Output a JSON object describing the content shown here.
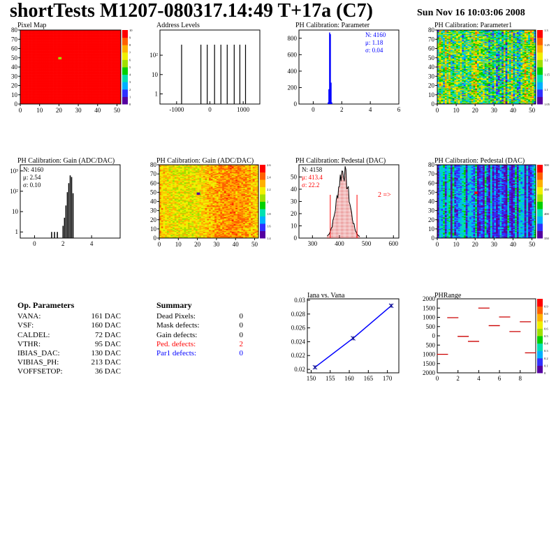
{
  "header": {
    "title": "shortTests M1207-080317.14:49 T+17a (C7)",
    "date": "Sun Nov 16 10:03:06 2008"
  },
  "colors": {
    "palette": [
      "#5500a0",
      "#3030ff",
      "#00b0ff",
      "#00e0b0",
      "#00d000",
      "#a0e000",
      "#f0f000",
      "#ffb000",
      "#ff6000",
      "#ff0000"
    ],
    "blue": "#0000ff",
    "red": "#ff0000",
    "dark_red": "#cc0000"
  },
  "op_params": {
    "title": "Op. Parameters",
    "rows": [
      {
        "k": "VANA:",
        "v": "161 DAC"
      },
      {
        "k": "VSF:",
        "v": "160 DAC"
      },
      {
        "k": "CALDEL:",
        "v": "72 DAC"
      },
      {
        "k": "VTHR:",
        "v": "95 DAC"
      },
      {
        "k": "IBIAS_DAC:",
        "v": "130 DAC"
      },
      {
        "k": "VIBIAS_PH:",
        "v": "213 DAC"
      },
      {
        "k": "VOFFSETOP:",
        "v": "36 DAC"
      }
    ]
  },
  "summary": {
    "title": "Summary",
    "rows": [
      {
        "k": "Dead Pixels:",
        "v": "0",
        "color": "#000000"
      },
      {
        "k": "Mask defects:",
        "v": "0",
        "color": "#000000"
      },
      {
        "k": "Gain defects:",
        "v": "0",
        "color": "#000000"
      },
      {
        "k": "Ped. defects:",
        "v": "2",
        "color": "#ff0000"
      },
      {
        "k": "Par1 defects:",
        "v": "0",
        "color": "#0000ff"
      }
    ]
  },
  "chart_data": [
    {
      "id": "pixel-map",
      "type": "heatmap",
      "title": "Pixel Map",
      "xlim": [
        0,
        52
      ],
      "ylim": [
        0,
        80
      ],
      "xticks": [
        "0",
        "10",
        "20",
        "30",
        "40",
        "50"
      ],
      "yticks": [
        "0",
        "10",
        "20",
        "30",
        "40",
        "50",
        "60",
        "70",
        "80"
      ],
      "zlim": [
        0,
        10
      ],
      "zticks": [
        "0",
        "1",
        "2",
        "3",
        "4",
        "5",
        "6",
        "7",
        "8",
        "9",
        "10"
      ],
      "fill_value": 10,
      "special_cells": [
        {
          "x": 20,
          "y": 49,
          "value": 5
        }
      ]
    },
    {
      "id": "address-levels",
      "type": "bar",
      "title": "Address Levels",
      "xlim": [
        -1500,
        1500
      ],
      "log_y": true,
      "ylim": [
        0.3,
        2000
      ],
      "xticks": [
        {
          "v": -1000,
          "t": "-1000"
        },
        {
          "v": 0,
          "t": "0"
        },
        {
          "v": 1000,
          "t": "1000"
        }
      ],
      "yticks": [
        {
          "v": 1,
          "t": "1"
        },
        {
          "v": 10,
          "t": "10"
        },
        {
          "v": 100,
          "t": "10²"
        }
      ],
      "x": [
        -850,
        -270,
        -80,
        140,
        330,
        520,
        730,
        900,
        1070
      ],
      "values": [
        350,
        350,
        350,
        350,
        350,
        350,
        350,
        350,
        350
      ]
    },
    {
      "id": "ph-parameter",
      "type": "bar",
      "title": "PH Calibration: Parameter",
      "xlim": [
        -1,
        6
      ],
      "ylim": [
        0,
        900
      ],
      "xticks": [
        {
          "v": 0,
          "t": "0"
        },
        {
          "v": 2,
          "t": "2"
        },
        {
          "v": 4,
          "t": "4"
        },
        {
          "v": 6,
          "t": "6"
        }
      ],
      "yticks": [
        {
          "v": 0,
          "t": "0"
        },
        {
          "v": 200,
          "t": "200"
        },
        {
          "v": 400,
          "t": "400"
        },
        {
          "v": 600,
          "t": "600"
        },
        {
          "v": 800,
          "t": "800"
        }
      ],
      "x": [
        1.05,
        1.1,
        1.15,
        1.2,
        1.25,
        1.3
      ],
      "values": [
        20,
        180,
        870,
        850,
        260,
        20
      ],
      "stats": [
        "N: 4160",
        "μ: 1.18",
        "σ: 0.04"
      ]
    },
    {
      "id": "ph-parameter1",
      "type": "heatmap",
      "title": "PH Calibration: Parameter1",
      "xlim": [
        0,
        52
      ],
      "ylim": [
        0,
        80
      ],
      "xticks": [
        "0",
        "10",
        "20",
        "30",
        "40",
        "50"
      ],
      "yticks": [
        "0",
        "10",
        "20",
        "30",
        "40",
        "50",
        "60",
        "70",
        "80"
      ],
      "zlim": [
        1.05,
        1.3
      ],
      "zticks": [
        "1.05",
        "1.1",
        "1.15",
        "1.2",
        "1.25",
        "1.3"
      ]
    },
    {
      "id": "gain-hist",
      "type": "bar",
      "title": "PH Calibration: Gain (ADC/DAC)",
      "xlim": [
        -1,
        6
      ],
      "log_y": true,
      "ylim": [
        0.5,
        2000
      ],
      "xticks": [
        {
          "v": 0,
          "t": "0"
        },
        {
          "v": 2,
          "t": "2"
        },
        {
          "v": 4,
          "t": "4"
        }
      ],
      "yticks": [
        {
          "v": 1,
          "t": "1"
        },
        {
          "v": 10,
          "t": "10"
        },
        {
          "v": 100,
          "t": "10²"
        },
        {
          "v": 1000,
          "t": "10³"
        }
      ],
      "x": [
        1.2,
        1.4,
        1.6,
        2.0,
        2.1,
        2.2,
        2.3,
        2.4,
        2.5,
        2.6,
        2.7
      ],
      "values": [
        1,
        1,
        1,
        2,
        5,
        20,
        90,
        250,
        600,
        500,
        80
      ],
      "stats": [
        "N: 4160",
        "μ: 2.54",
        "σ: 0.10"
      ]
    },
    {
      "id": "gain-map",
      "type": "heatmap",
      "title": "PH Calibration: Gain (ADC/DAC)",
      "xlim": [
        0,
        52
      ],
      "ylim": [
        0,
        80
      ],
      "xticks": [
        "0",
        "10",
        "20",
        "30",
        "40",
        "50"
      ],
      "yticks": [
        "0",
        "10",
        "20",
        "30",
        "40",
        "50",
        "60",
        "70",
        "80"
      ],
      "zlim": [
        1.3,
        2.7
      ],
      "zticks": [
        "1.4",
        "1.6",
        "1.8",
        "2",
        "2.2",
        "2.4",
        "2.6"
      ],
      "special_cells": [
        {
          "x": 20,
          "y": 48,
          "value": 1.3
        }
      ]
    },
    {
      "id": "pedestal-hist",
      "type": "bar",
      "title": "PH Calibration: Pedestal (DAC)",
      "xlim": [
        250,
        620
      ],
      "ylim": [
        0,
        60
      ],
      "xticks": [
        {
          "v": 300,
          "t": "300"
        },
        {
          "v": 400,
          "t": "400"
        },
        {
          "v": 500,
          "t": "500"
        },
        {
          "v": 600,
          "t": "600"
        }
      ],
      "yticks": [
        {
          "v": 0,
          "t": "0"
        },
        {
          "v": 10,
          "t": "10"
        },
        {
          "v": 20,
          "t": "20"
        },
        {
          "v": 30,
          "t": "30"
        },
        {
          "v": 40,
          "t": "40"
        },
        {
          "v": 50,
          "t": "50"
        }
      ],
      "mean": 413.4,
      "sigma": 22.2,
      "peak": 55,
      "cut_lines": [
        366,
        465
      ],
      "stats": [
        "N: 4158",
        "μ: 413.4",
        "σ: 22.2"
      ],
      "annotation": "2 =>"
    },
    {
      "id": "pedestal-map",
      "type": "heatmap",
      "title": "PH Calibration: Pedestal (DAC)",
      "xlim": [
        0,
        52
      ],
      "ylim": [
        0,
        80
      ],
      "xticks": [
        "0",
        "10",
        "20",
        "30",
        "40",
        "50"
      ],
      "yticks": [
        "0",
        "10",
        "20",
        "30",
        "40",
        "50",
        "60",
        "70",
        "80"
      ],
      "zlim": [
        350,
        500
      ],
      "zticks": [
        "350",
        "400",
        "450",
        "500"
      ],
      "special_cells": [
        {
          "x": 20,
          "y": 49,
          "value": 500
        }
      ]
    },
    {
      "id": "iana-vana",
      "type": "line",
      "title": "Iana vs. Vana",
      "xlim": [
        149,
        173
      ],
      "ylim": [
        0.0195,
        0.0302
      ],
      "xticks": [
        {
          "v": 150,
          "t": "150"
        },
        {
          "v": 155,
          "t": "155"
        },
        {
          "v": 160,
          "t": "160"
        },
        {
          "v": 165,
          "t": "165"
        },
        {
          "v": 170,
          "t": "170"
        }
      ],
      "yticks": [
        {
          "v": 0.02,
          "t": "0.02"
        },
        {
          "v": 0.022,
          "t": "0.022"
        },
        {
          "v": 0.024,
          "t": "0.024"
        },
        {
          "v": 0.026,
          "t": "0.026"
        },
        {
          "v": 0.028,
          "t": "0.028"
        },
        {
          "v": 0.03,
          "t": "0.03"
        }
      ],
      "x": [
        151,
        161,
        171
      ],
      "values": [
        0.0203,
        0.0245,
        0.0292
      ]
    },
    {
      "id": "ph-range",
      "type": "scatter",
      "title": "PHRange",
      "xlim": [
        0,
        9.5
      ],
      "ylim": [
        -2000,
        2000
      ],
      "xticks": [
        {
          "v": 0,
          "t": "0"
        },
        {
          "v": 2,
          "t": "2"
        },
        {
          "v": 4,
          "t": "4"
        },
        {
          "v": 6,
          "t": "6"
        },
        {
          "v": 8,
          "t": "8"
        }
      ],
      "yticks": [
        {
          "v": -2000,
          "t": "2000"
        },
        {
          "v": -1500,
          "t": "1500"
        },
        {
          "v": -1000,
          "t": "1000"
        },
        {
          "v": -500,
          "t": "500"
        },
        {
          "v": 0,
          "t": "0"
        },
        {
          "v": 500,
          "t": "500"
        },
        {
          "v": 1000,
          "t": "1000"
        },
        {
          "v": 1500,
          "t": "1500"
        },
        {
          "v": 2000,
          "t": "2000"
        }
      ],
      "x": [
        0.5,
        2.5,
        4.5,
        6.5,
        8.5,
        1.5,
        3.5,
        5.5,
        7.5,
        9
      ],
      "values": [
        -1000,
        -30,
        1500,
        1020,
        760,
        980,
        -300,
        550,
        230,
        -920
      ],
      "zticks": [
        "0",
        "0.1",
        "0.2",
        "0.3",
        "0.4",
        "0.5",
        "0.6",
        "0.7",
        "0.8",
        "0.9"
      ]
    }
  ]
}
